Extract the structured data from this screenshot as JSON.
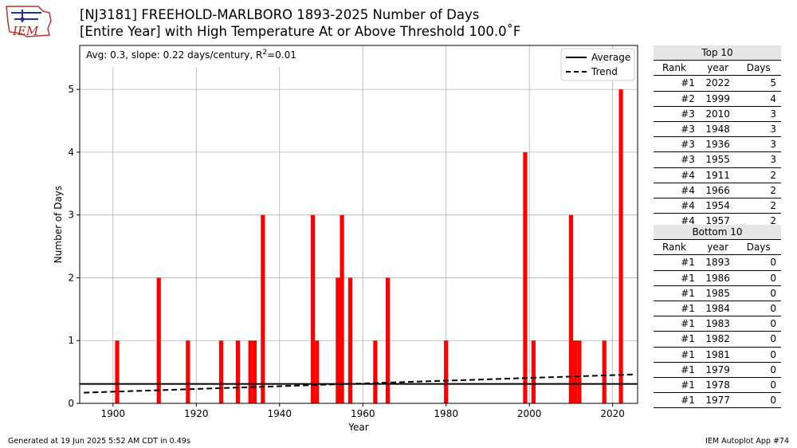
{
  "logo_text": "IEM",
  "title_line1": "[NJ3181] FREEHOLD-MARLBORO 1893-2025 Number of Days",
  "title_line2": "[Entire Year] with High Temperature At or Above Threshold 100.0˚F",
  "footer_left": "Generated at 19 Jun 2025 5:52 AM CDT in 0.49s",
  "footer_right": "IEM Autoplot App #74",
  "colors": {
    "bar": "#ff0000",
    "line": "#000000",
    "grid": "#b0b0b0",
    "table_header_bg": "#e6e6e6"
  },
  "chart_data": {
    "type": "bar",
    "title": "[NJ3181] FREEHOLD-MARLBORO 1893-2025 Number of Days",
    "xlabel": "Year",
    "ylabel": "Number of Days",
    "xlim": [
      1892,
      2026
    ],
    "ylim": [
      0,
      5.7
    ],
    "xticks": [
      1900,
      1920,
      1940,
      1960,
      1980,
      2000,
      2020
    ],
    "yticks": [
      0,
      1,
      2,
      3,
      4,
      5
    ],
    "grid": true,
    "annotation": {
      "prefix": "Avg: 0.3, slope: 0.22 days/century, R",
      "sup": "2",
      "suffix": "=0.01"
    },
    "legend": {
      "position": "top-right",
      "entries": [
        {
          "label": "Average",
          "style": "solid"
        },
        {
          "label": "Trend",
          "style": "dashed"
        }
      ]
    },
    "average": 0.31,
    "trend": {
      "x": [
        1893,
        2025
      ],
      "y": [
        0.17,
        0.46
      ]
    },
    "bars": [
      {
        "x": 1901,
        "y": 1
      },
      {
        "x": 1911,
        "y": 2
      },
      {
        "x": 1918,
        "y": 1
      },
      {
        "x": 1926,
        "y": 1
      },
      {
        "x": 1930,
        "y": 1
      },
      {
        "x": 1933,
        "y": 1
      },
      {
        "x": 1934,
        "y": 1
      },
      {
        "x": 1936,
        "y": 3
      },
      {
        "x": 1948,
        "y": 3
      },
      {
        "x": 1949,
        "y": 1
      },
      {
        "x": 1954,
        "y": 2
      },
      {
        "x": 1955,
        "y": 3
      },
      {
        "x": 1957,
        "y": 2
      },
      {
        "x": 1963,
        "y": 1
      },
      {
        "x": 1966,
        "y": 2
      },
      {
        "x": 1980,
        "y": 1
      },
      {
        "x": 1999,
        "y": 4
      },
      {
        "x": 2001,
        "y": 1
      },
      {
        "x": 2010,
        "y": 3
      },
      {
        "x": 2011,
        "y": 1
      },
      {
        "x": 2012,
        "y": 1
      },
      {
        "x": 2018,
        "y": 1
      },
      {
        "x": 2022,
        "y": 5
      }
    ]
  },
  "tables": {
    "top10": {
      "title": "Top 10",
      "headers": [
        "Rank",
        "year",
        "Days"
      ],
      "rows": [
        [
          "#1",
          "2022",
          "5"
        ],
        [
          "#2",
          "1999",
          "4"
        ],
        [
          "#3",
          "2010",
          "3"
        ],
        [
          "#3",
          "1948",
          "3"
        ],
        [
          "#3",
          "1936",
          "3"
        ],
        [
          "#3",
          "1955",
          "3"
        ],
        [
          "#4",
          "1911",
          "2"
        ],
        [
          "#4",
          "1966",
          "2"
        ],
        [
          "#4",
          "1954",
          "2"
        ],
        [
          "#4",
          "1957",
          "2"
        ]
      ]
    },
    "bottom10": {
      "title": "Bottom 10",
      "headers": [
        "Rank",
        "year",
        "Days"
      ],
      "rows": [
        [
          "#1",
          "1893",
          "0"
        ],
        [
          "#1",
          "1986",
          "0"
        ],
        [
          "#1",
          "1985",
          "0"
        ],
        [
          "#1",
          "1984",
          "0"
        ],
        [
          "#1",
          "1983",
          "0"
        ],
        [
          "#1",
          "1982",
          "0"
        ],
        [
          "#1",
          "1981",
          "0"
        ],
        [
          "#1",
          "1979",
          "0"
        ],
        [
          "#1",
          "1978",
          "0"
        ],
        [
          "#1",
          "1977",
          "0"
        ]
      ]
    }
  }
}
